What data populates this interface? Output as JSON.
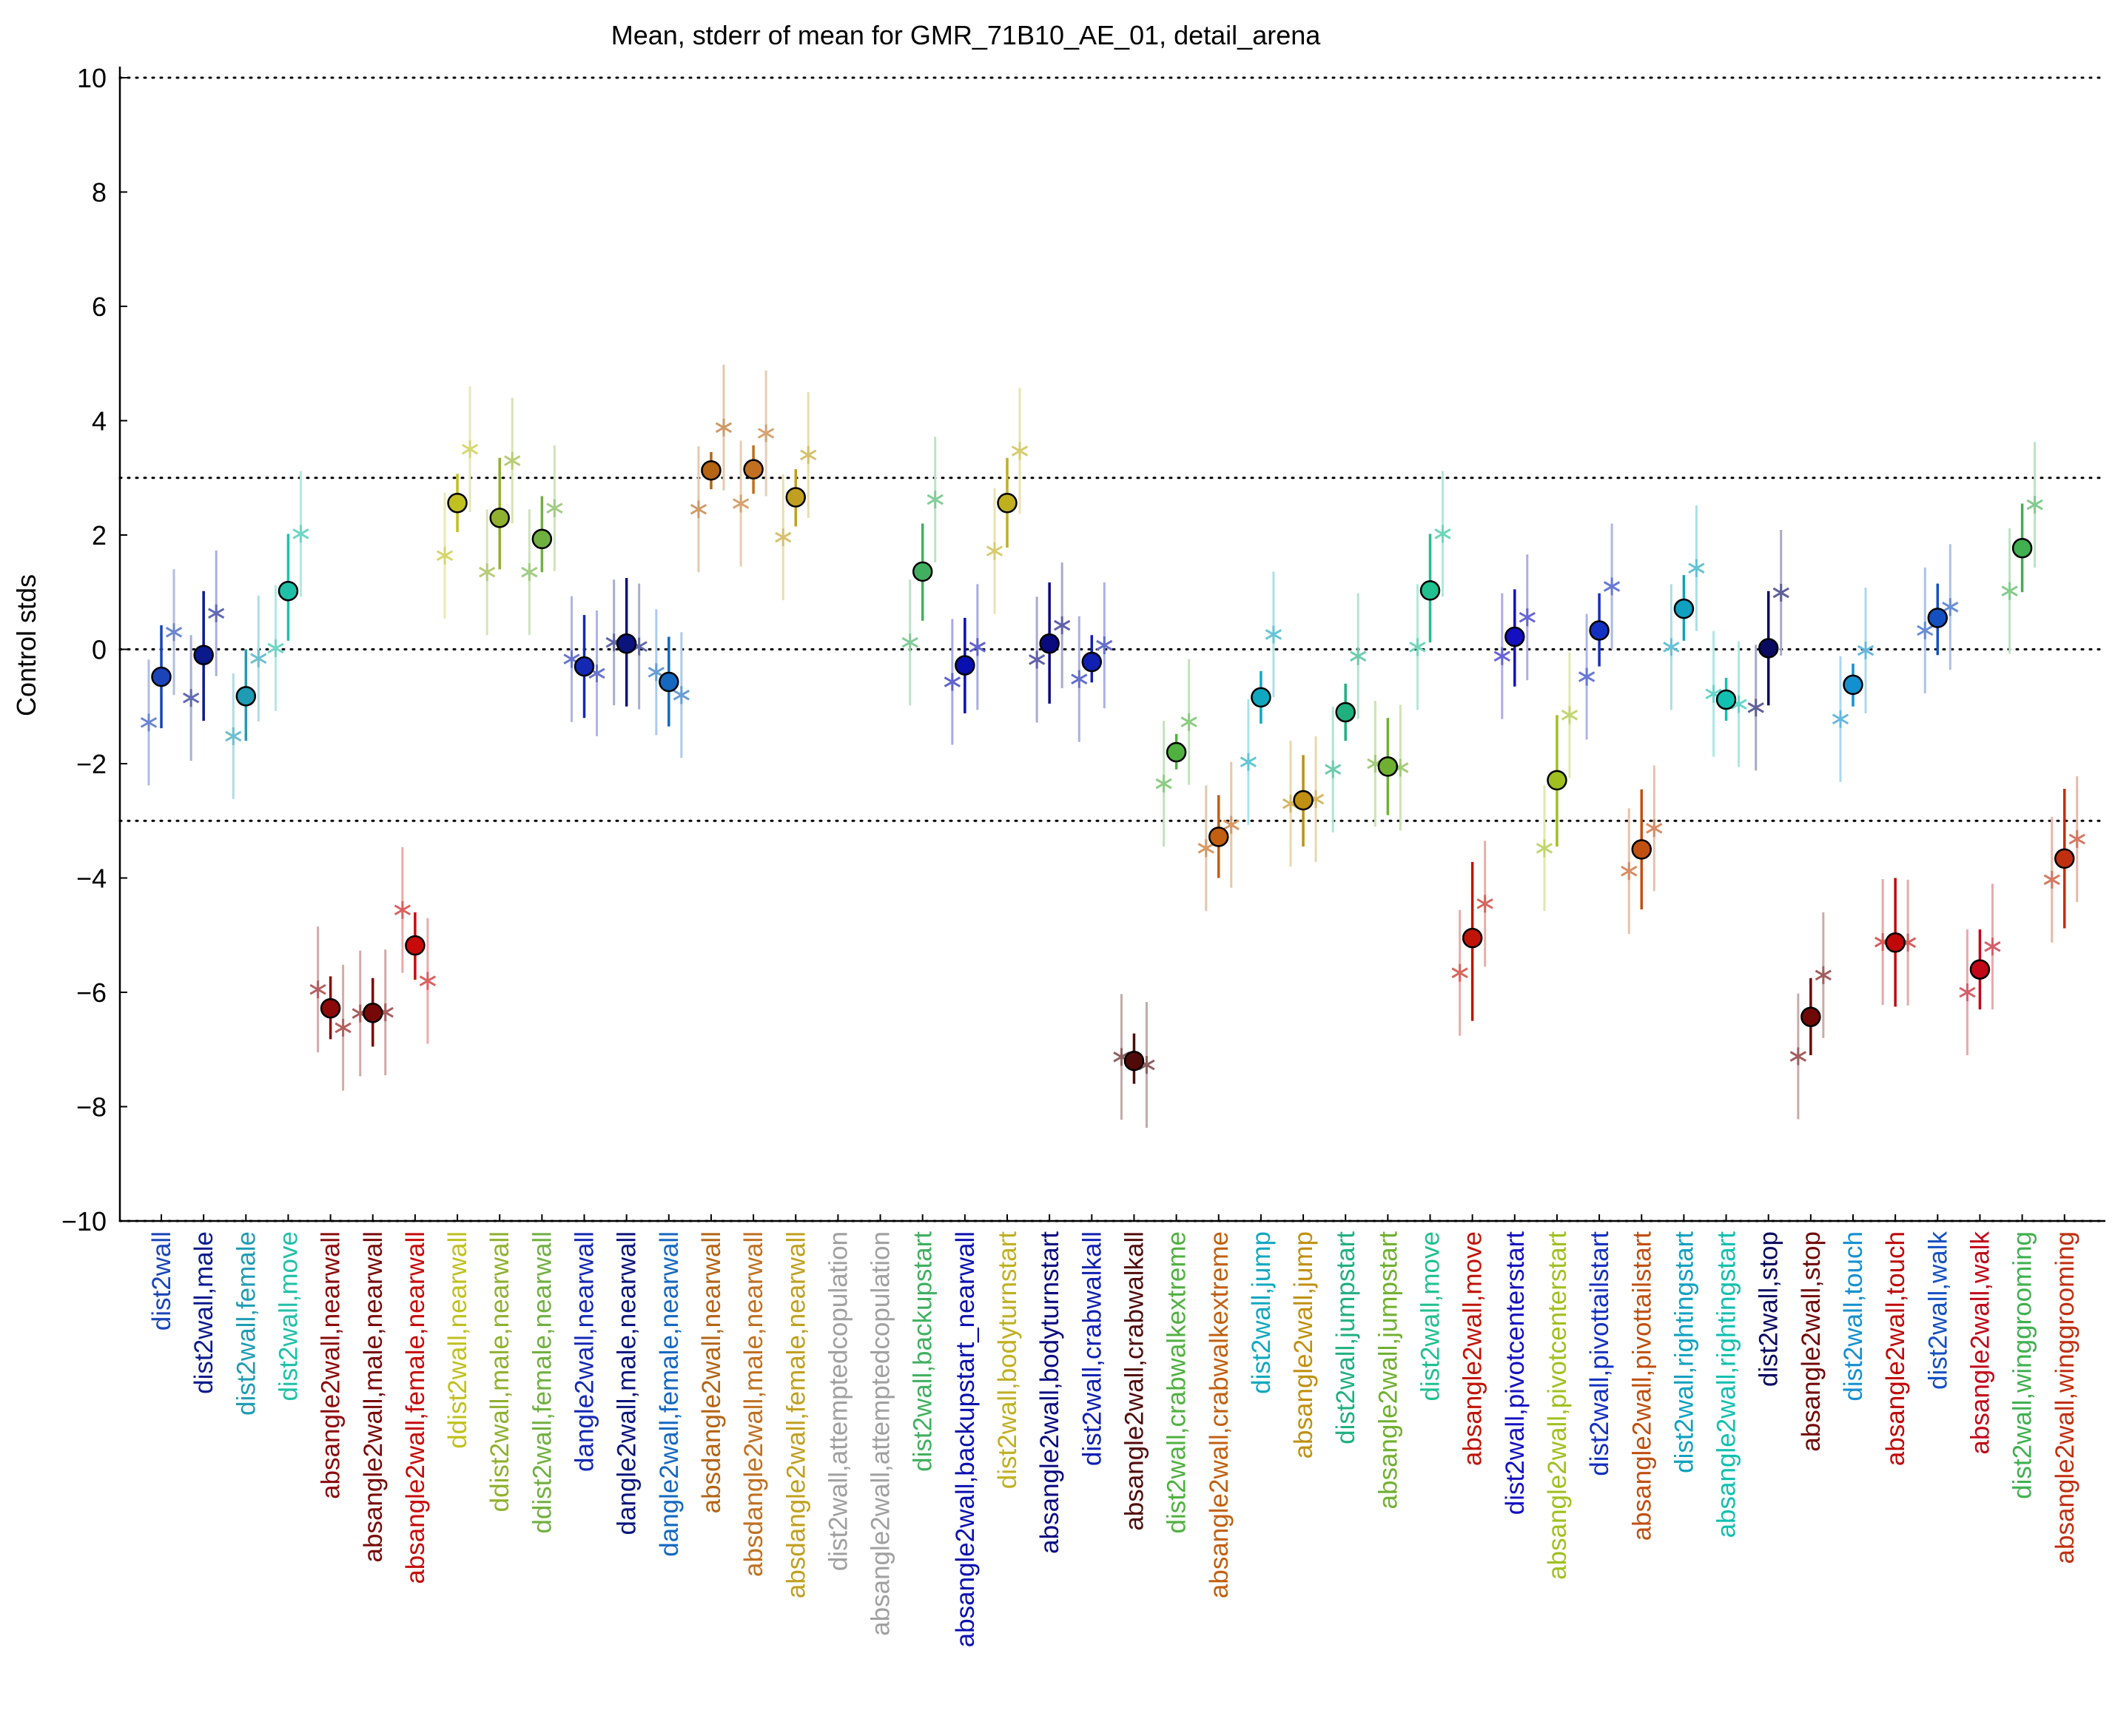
{
  "chart_data": {
    "type": "scatter",
    "title": "Mean, stderr of mean for GMR_71B10_AE_01, detail_arena",
    "ylabel": "Control stds",
    "xlabel": "",
    "ylim": [
      -10,
      10
    ],
    "yticks": [
      -10,
      -8,
      -6,
      -4,
      -2,
      0,
      2,
      4,
      6,
      8,
      10
    ],
    "reference_lines": [
      10,
      3,
      0,
      -3,
      -10
    ],
    "grid": false,
    "categories": [
      "dist2wall",
      "dist2wall,male",
      "dist2wall,female",
      "dist2wall,move",
      "absangle2wall,nearwall",
      "absangle2wall,male,nearwall",
      "absangle2wall,female,nearwall",
      "ddist2wall,nearwall",
      "ddist2wall,male,nearwall",
      "ddist2wall,female,nearwall",
      "dangle2wall,nearwall",
      "dangle2wall,male,nearwall",
      "dangle2wall,female,nearwall",
      "absdangle2wall,nearwall",
      "absdangle2wall,male,nearwall",
      "absdangle2wall,female,nearwall",
      "dist2wall,attemptedcopulation",
      "absangle2wall,attemptedcopulation",
      "dist2wall,backupstart",
      "absangle2wall,backupstart_nearwall",
      "dist2wall,bodyturnstart",
      "absangle2wall,bodyturnstart",
      "dist2wall,crabwalkall",
      "absangle2wall,crabwalkall",
      "dist2wall,crabwalkextreme",
      "absangle2wall,crabwalkextreme",
      "dist2wall,jump",
      "absangle2wall,jump",
      "dist2wall,jumpstart",
      "absangle2wall,jumpstart",
      "dist2wall,move",
      "absangle2wall,move",
      "dist2wall,pivotcenterstart",
      "absangle2wall,pivotcenterstart",
      "dist2wall,pivottailstart",
      "absangle2wall,pivottailstart",
      "dist2wall,rightingstart",
      "absangle2wall,rightingstart",
      "dist2wall,stop",
      "absangle2wall,stop",
      "dist2wall,touch",
      "absangle2wall,touch",
      "dist2wall,walk",
      "absangle2wall,walk",
      "dist2wall,winggrooming",
      "absangle2wall,winggrooming"
    ],
    "colors": [
      "#1a44b8",
      "#0a1a8c",
      "#1f9cb4",
      "#20c0a8",
      "#8c0a0a",
      "#780808",
      "#c80a0a",
      "#c0c020",
      "#90b030",
      "#70b040",
      "#1428b4",
      "#0a147c",
      "#1468c0",
      "#b46414",
      "#c07020",
      "#c0a020",
      "#a0a0a0",
      "#a0a0a0",
      "#40b060",
      "#0a10b0",
      "#c0b020",
      "#0a0a80",
      "#1020b0",
      "#500a0a",
      "#50b040",
      "#c06010",
      "#10a8c0",
      "#c09010",
      "#20b080",
      "#70b030",
      "#20c090",
      "#c01408",
      "#1410c0",
      "#a0c020",
      "#1430c0",
      "#c05010",
      "#10a0c0",
      "#10c0b0",
      "#0a0a60",
      "#700808",
      "#1490d0",
      "#c00808",
      "#1450c0",
      "#c00818",
      "#40b050",
      "#c03010"
    ],
    "series": [
      {
        "name": "mean",
        "values": [
          -0.48,
          -0.1,
          -0.82,
          1.02,
          -6.28,
          -6.36,
          -5.18,
          2.56,
          2.3,
          1.93,
          -0.3,
          0.1,
          -0.57,
          3.13,
          3.15,
          2.66,
          null,
          null,
          1.36,
          -0.28,
          2.56,
          0.1,
          -0.22,
          -7.2,
          -1.8,
          -3.28,
          -0.84,
          -2.64,
          -1.1,
          -2.05,
          1.03,
          -5.05,
          0.22,
          -2.29,
          0.33,
          -3.5,
          0.71,
          -0.88,
          0.02,
          -6.43,
          -0.62,
          -5.13,
          0.55,
          -5.6,
          1.77,
          -3.66
        ],
        "err_low": [
          -1.38,
          -1.25,
          -1.6,
          0.15,
          -6.82,
          -6.95,
          -5.78,
          2.05,
          1.4,
          1.35,
          -1.2,
          -1.0,
          -1.35,
          2.8,
          2.72,
          2.15,
          null,
          null,
          0.5,
          -1.12,
          1.78,
          -0.95,
          -0.58,
          -7.6,
          -2.1,
          -4.0,
          -1.3,
          -3.45,
          -1.6,
          -2.9,
          0.12,
          -6.5,
          -0.65,
          -3.45,
          -0.3,
          -4.55,
          0.15,
          -1.25,
          -0.98,
          -7.1,
          -1.0,
          -6.25,
          -0.1,
          -6.3,
          1.0,
          -4.88
        ],
        "err_high": [
          0.42,
          1.02,
          0.0,
          2.02,
          -5.72,
          -5.75,
          -4.6,
          3.07,
          3.35,
          2.68,
          0.6,
          1.25,
          0.22,
          3.45,
          3.57,
          3.15,
          null,
          null,
          2.2,
          0.55,
          3.35,
          1.17,
          0.25,
          -6.72,
          -1.48,
          -2.55,
          -0.38,
          -1.85,
          -0.6,
          -1.2,
          2.02,
          -3.72,
          1.05,
          -1.15,
          0.98,
          -2.45,
          1.3,
          -0.5,
          1.02,
          -5.75,
          -0.25,
          -4.0,
          1.15,
          -4.9,
          2.55,
          -2.44
        ]
      },
      {
        "name": "left",
        "values": [
          -1.28,
          -0.85,
          -1.52,
          0.02,
          -5.95,
          -6.37,
          -4.56,
          1.64,
          1.35,
          1.35,
          -0.17,
          0.12,
          -0.4,
          2.45,
          2.55,
          1.96,
          null,
          null,
          0.12,
          -0.57,
          1.72,
          -0.18,
          -0.52,
          -7.13,
          -2.35,
          -3.48,
          -1.97,
          -2.7,
          -2.1,
          -2.0,
          0.04,
          -5.66,
          -0.12,
          -3.48,
          -0.48,
          -3.88,
          0.04,
          -0.78,
          -1.02,
          -7.12,
          -1.22,
          -5.12,
          0.33,
          -6.0,
          1.02,
          -4.03
        ]
      },
      {
        "name": "right",
        "values": [
          0.3,
          0.63,
          -0.16,
          2.02,
          -6.62,
          -6.35,
          -5.8,
          3.5,
          3.3,
          2.47,
          -0.42,
          0.05,
          -0.8,
          3.88,
          3.78,
          3.4,
          null,
          null,
          2.62,
          0.04,
          3.47,
          0.42,
          0.07,
          -7.27,
          -1.27,
          -3.07,
          0.26,
          -2.62,
          -0.12,
          -2.07,
          2.02,
          -4.45,
          0.56,
          -1.15,
          1.1,
          -3.13,
          1.42,
          -0.96,
          0.99,
          -5.7,
          -0.02,
          -5.13,
          0.74,
          -5.2,
          2.53,
          -3.32
        ]
      }
    ]
  }
}
